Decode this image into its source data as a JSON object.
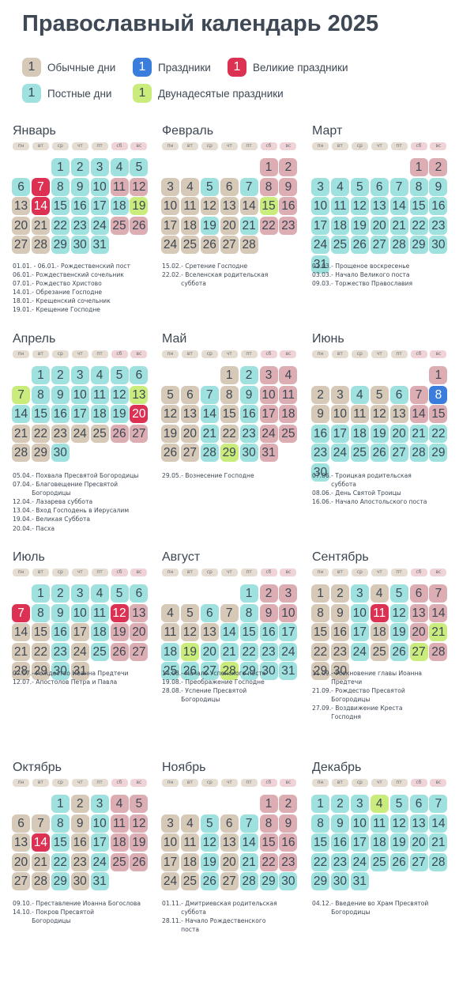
{
  "title": "Православный календарь 2025",
  "colors": {
    "ordinary": "#d7c9b7",
    "ordinary_weekend": "#dcaeb3",
    "fast": "#9ee1de",
    "holiday": "#3b7ddd",
    "great_holiday": "#dd3154",
    "twelve": "#c9ec7c",
    "text": "#3d4753"
  },
  "legend": [
    {
      "num": "1",
      "label": "Обычные дни",
      "kind": "o"
    },
    {
      "num": "1",
      "label": "Праздники",
      "kind": "h"
    },
    {
      "num": "1",
      "label": "Великие праздники",
      "kind": "g"
    },
    {
      "num": "1",
      "label": "Постные дни",
      "kind": "f"
    },
    {
      "num": "1",
      "label": "Двунадесятые праздники",
      "kind": "t"
    }
  ],
  "weekdays": [
    "пн",
    "вт",
    "ср",
    "чт",
    "пт",
    "сб",
    "вс"
  ],
  "months": [
    {
      "name": "Январь",
      "start": 2,
      "days": 31,
      "fast": [
        1,
        2,
        3,
        4,
        5,
        6,
        8,
        9,
        10,
        15,
        16,
        17,
        18,
        22,
        23,
        24,
        29,
        30,
        31
      ],
      "holiday": [],
      "great": [
        7,
        14
      ],
      "twelve": [
        19
      ],
      "events": [
        {
          "date": "01.01. - 06.01.",
          "text": " - Рождественский пост"
        },
        {
          "date": "06.01.",
          "text": " - Рождественский сочельник"
        },
        {
          "date": "07.01.",
          "text": " - Рождество Христово"
        },
        {
          "date": "14.01.",
          "text": " - Обрезание Господне"
        },
        {
          "date": "18.01.",
          "text": " - Крещенский сочельник"
        },
        {
          "date": "19.01.",
          "text": " - Крещение Господне"
        }
      ]
    },
    {
      "name": "Февраль",
      "start": 5,
      "days": 28,
      "fast": [
        5,
        7,
        19,
        21
      ],
      "holiday": [],
      "great": [],
      "twelve": [
        15
      ],
      "events": [
        {
          "date": "15.02.",
          "text": " - Сретение Господне"
        },
        {
          "date": "22.02.",
          "text": " - Вселенская родительская\nсуббота"
        }
      ]
    },
    {
      "name": "Март",
      "start": 5,
      "days": 31,
      "fast": [
        3,
        4,
        5,
        6,
        7,
        8,
        9,
        10,
        11,
        12,
        13,
        14,
        15,
        16,
        17,
        18,
        19,
        20,
        21,
        22,
        23,
        24,
        25,
        26,
        27,
        28,
        29,
        30,
        31
      ],
      "holiday": [],
      "great": [],
      "twelve": [],
      "events": [
        {
          "date": "02.03.",
          "text": " - Прощеное воскресенье"
        },
        {
          "date": "03.03.",
          "text": " - Начало Великого поста"
        },
        {
          "date": "09.03.",
          "text": " - Торжество Православия"
        }
      ]
    },
    {
      "name": "Апрель",
      "start": 1,
      "days": 30,
      "fast": [
        1,
        2,
        3,
        4,
        5,
        6,
        8,
        9,
        10,
        11,
        12,
        14,
        15,
        16,
        17,
        18,
        19,
        30
      ],
      "holiday": [],
      "great": [
        20
      ],
      "twelve": [
        7,
        13
      ],
      "events": [
        {
          "date": "05.04.",
          "text": " - Похвала Пресвятой Богородицы"
        },
        {
          "date": "07.04.",
          "text": " - Благовещение Пресвятой\nБогородицы"
        },
        {
          "date": "12.04.",
          "text": " - Лазарева суббота"
        },
        {
          "date": "13.04.",
          "text": " - Вход Господень в Иерусалим"
        },
        {
          "date": "19.04.",
          "text": " - Великая Суббота"
        },
        {
          "date": "20.04.",
          "text": " - Пасха"
        }
      ]
    },
    {
      "name": "Май",
      "start": 3,
      "days": 31,
      "fast": [
        2,
        7,
        9,
        14,
        16,
        21,
        23,
        28,
        30
      ],
      "holiday": [],
      "great": [],
      "twelve": [
        29
      ],
      "events": [
        {
          "date": "29.05.",
          "text": " - Вознесение Господне"
        }
      ]
    },
    {
      "name": "Июнь",
      "start": 6,
      "days": 30,
      "fast": [
        4,
        6,
        16,
        17,
        18,
        19,
        20,
        21,
        22,
        23,
        24,
        25,
        26,
        27,
        28,
        29,
        30
      ],
      "holiday": [
        8
      ],
      "great": [],
      "twelve": [],
      "events": [
        {
          "date": "07.06.",
          "text": " - Троицкая родительская\nсуббота"
        },
        {
          "date": "08.06.",
          "text": " - День Святой Троицы"
        },
        {
          "date": "16.06.",
          "text": " - Начало Апостольского поста"
        }
      ]
    },
    {
      "name": "Июль",
      "start": 1,
      "days": 31,
      "fast": [
        1,
        2,
        3,
        4,
        5,
        6,
        8,
        9,
        10,
        11,
        16,
        18,
        23,
        25,
        30
      ],
      "holiday": [],
      "great": [
        7,
        12
      ],
      "twelve": [],
      "events": [
        {
          "date": "07.07.",
          "text": " - Рождество Иоанна Предтечи"
        },
        {
          "date": "12.07.",
          "text": " - Апостолов Петра и Павла"
        }
      ]
    },
    {
      "name": "Август",
      "start": 4,
      "days": 31,
      "fast": [
        1,
        6,
        8,
        14,
        15,
        16,
        17,
        18,
        20,
        21,
        22,
        23,
        24,
        25,
        26,
        27,
        29,
        30,
        31
      ],
      "holiday": [],
      "great": [],
      "twelve": [
        19,
        28
      ],
      "events": [
        {
          "date": "14.08.",
          "text": " - Начало Успенского поста"
        },
        {
          "date": "19.08.",
          "text": " - Преображение Господне"
        },
        {
          "date": "28.08.",
          "text": " - Успение Пресвятой\nБогородицы"
        }
      ]
    },
    {
      "name": "Сентябрь",
      "start": 0,
      "days": 30,
      "fast": [
        3,
        5,
        10,
        12,
        17,
        19,
        24,
        26
      ],
      "holiday": [],
      "great": [
        11
      ],
      "twelve": [
        21,
        27
      ],
      "events": [
        {
          "date": "11.09.",
          "text": " - Усекновение главы Иоанна\nПредтечи"
        },
        {
          "date": "21.09.",
          "text": " - Рождество Пресвятой\nБогородицы"
        },
        {
          "date": "27.09.",
          "text": " - Воздвижение Креста\nГосподня"
        }
      ]
    },
    {
      "name": "Октябрь",
      "start": 2,
      "days": 31,
      "fast": [
        1,
        3,
        8,
        10,
        15,
        17,
        22,
        24,
        29,
        31
      ],
      "holiday": [],
      "great": [
        14
      ],
      "twelve": [],
      "events": [
        {
          "date": "09.10.",
          "text": " - Преставление Иоанна Богослова"
        },
        {
          "date": "14.10.",
          "text": " - Покров Пресвятой\nБогородицы"
        }
      ]
    },
    {
      "name": "Ноябрь",
      "start": 5,
      "days": 30,
      "fast": [
        5,
        7,
        12,
        14,
        19,
        21,
        26,
        28,
        29,
        30
      ],
      "holiday": [],
      "great": [],
      "twelve": [],
      "events": [
        {
          "date": "01.11.",
          "text": " - Дмитриевская родительская\nсуббота"
        },
        {
          "date": "28.11.",
          "text": " - Начало Рождественского\nпоста"
        }
      ]
    },
    {
      "name": "Декабрь",
      "start": 0,
      "days": 31,
      "fast": [
        1,
        2,
        3,
        5,
        6,
        7,
        8,
        9,
        10,
        11,
        12,
        13,
        14,
        15,
        16,
        17,
        18,
        19,
        20,
        21,
        22,
        23,
        24,
        25,
        26,
        27,
        28,
        29,
        30,
        31
      ],
      "holiday": [],
      "great": [],
      "twelve": [
        4
      ],
      "events": [
        {
          "date": "04.12.",
          "text": " - Введение во Храм Пресвятой\nБогородицы"
        }
      ]
    }
  ]
}
